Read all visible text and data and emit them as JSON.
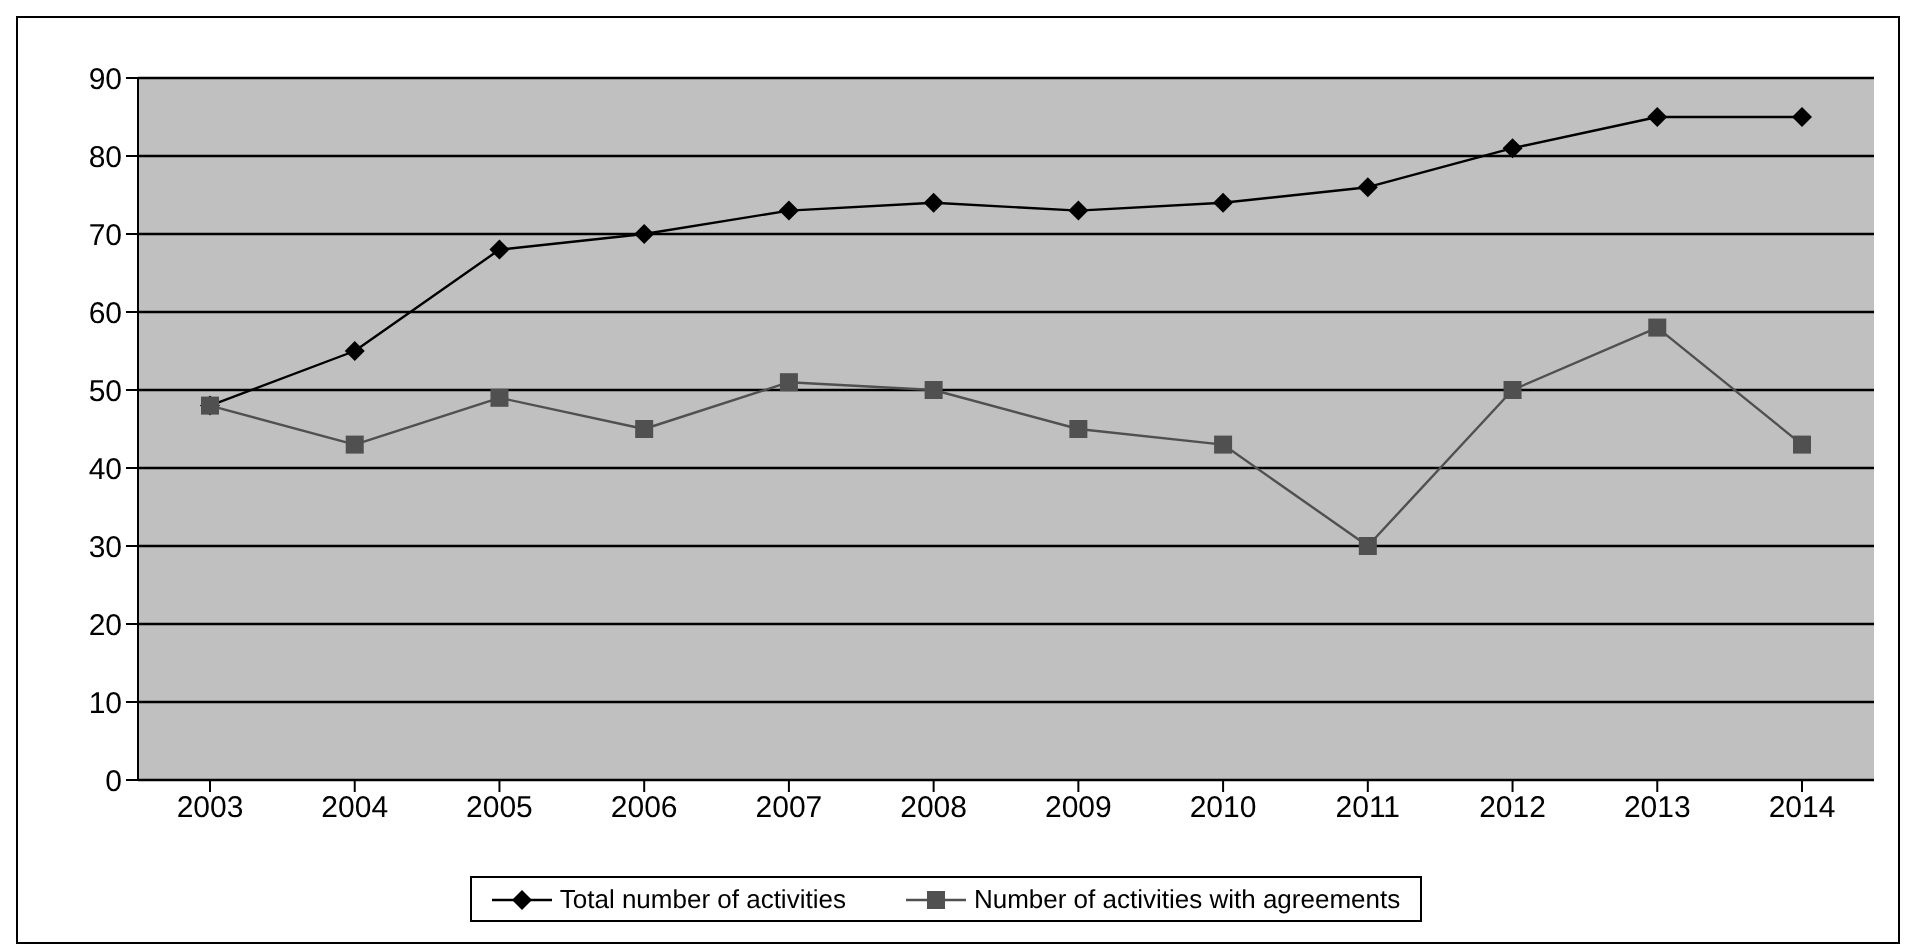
{
  "chart_data": {
    "type": "line",
    "categories": [
      "2003",
      "2004",
      "2005",
      "2006",
      "2007",
      "2008",
      "2009",
      "2010",
      "2011",
      "2012",
      "2013",
      "2014"
    ],
    "series": [
      {
        "name": "Total number of activities",
        "color": "#000000",
        "marker": "diamond",
        "values": [
          48,
          55,
          68,
          70,
          73,
          74,
          73,
          74,
          76,
          81,
          85,
          85
        ]
      },
      {
        "name": "Number of activities with agreements",
        "color": "#505050",
        "marker": "square",
        "values": [
          48,
          43,
          49,
          45,
          51,
          50,
          45,
          43,
          30,
          50,
          58,
          43
        ]
      }
    ],
    "ylim": [
      0,
      90
    ],
    "yticks": [
      0,
      10,
      20,
      30,
      40,
      50,
      60,
      70,
      80,
      90
    ],
    "grid": "y",
    "legend": "bottom"
  }
}
